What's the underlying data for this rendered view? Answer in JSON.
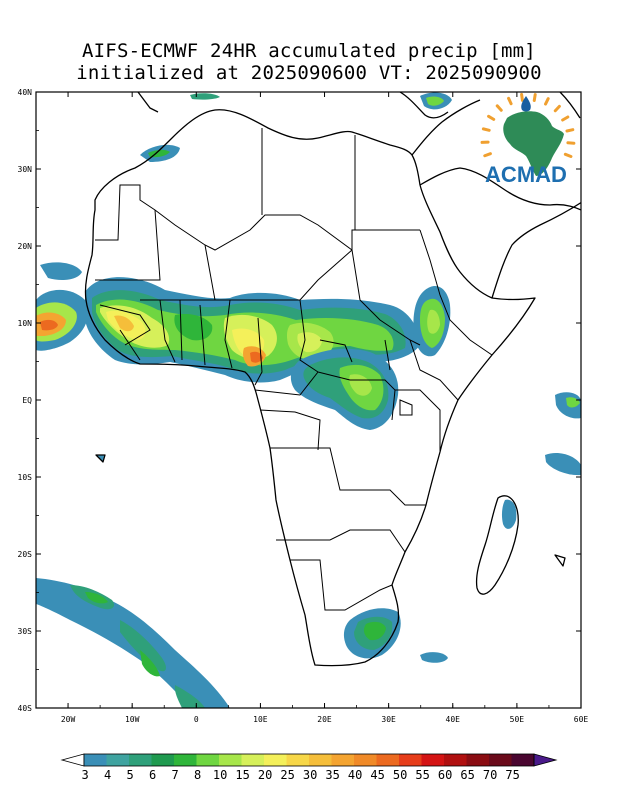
{
  "title_line1": "AIFS-ECMWF 24HR accumulated precip [mm]",
  "title_line2": "initialized at 2025090600 VT: 2025090900",
  "logo": {
    "text": "ACMAD",
    "icon": "africa-sun-logo-icon",
    "colors": {
      "africa": "#2e8b57",
      "rays": "#f0a030",
      "drop": "#1a5fa0",
      "text": "#1e6fb0"
    }
  },
  "map": {
    "lon_range": [
      -25,
      60
    ],
    "lat_range": [
      -40,
      40
    ],
    "lat_labels": [
      {
        "lat": 40,
        "label": "40N"
      },
      {
        "lat": 30,
        "label": "30N"
      },
      {
        "lat": 20,
        "label": "20N"
      },
      {
        "lat": 10,
        "label": "10N"
      },
      {
        "lat": 0,
        "label": "EQ"
      },
      {
        "lat": -10,
        "label": "10S"
      },
      {
        "lat": -20,
        "label": "20S"
      },
      {
        "lat": -30,
        "label": "30S"
      },
      {
        "lat": -40,
        "label": "40S"
      }
    ],
    "lon_labels": [
      {
        "lon": -20,
        "label": "20W"
      },
      {
        "lon": -10,
        "label": "10W"
      },
      {
        "lon": 0,
        "label": "0"
      },
      {
        "lon": 10,
        "label": "10E"
      },
      {
        "lon": 20,
        "label": "20E"
      },
      {
        "lon": 30,
        "label": "30E"
      },
      {
        "lon": 40,
        "label": "40E"
      },
      {
        "lon": 50,
        "label": "50E"
      },
      {
        "lon": 60,
        "label": "60E"
      }
    ]
  },
  "colorbar": {
    "labels": [
      "3",
      "4",
      "5",
      "6",
      "7",
      "8",
      "10",
      "15",
      "20",
      "25",
      "30",
      "35",
      "40",
      "45",
      "50",
      "55",
      "60",
      "65",
      "70",
      "75"
    ],
    "colors": [
      "#3a8fb7",
      "#3fa3a0",
      "#2fa07a",
      "#1f9a4f",
      "#2fb53a",
      "#6fd641",
      "#a7e64a",
      "#d6f05a",
      "#f4f05a",
      "#f7d748",
      "#f5be3a",
      "#f4a431",
      "#f08a28",
      "#ec6a20",
      "#e63d1a",
      "#d41414",
      "#b01010",
      "#8a0c12",
      "#6a0a1a",
      "#4a0630"
    ],
    "under_color": "#ffffff",
    "over_color": "#4a1a8a"
  },
  "precip_areas": [
    {
      "id": "sahel-west",
      "lon": -16,
      "lat": 10.5,
      "max_mm": 30
    },
    {
      "id": "atlantic-itcz",
      "lon": -23,
      "lat": 9.5,
      "max_mm": 45
    },
    {
      "id": "nigeria-cameroon",
      "lon": 9,
      "lat": 5.5,
      "max_mm": 50
    },
    {
      "id": "chad-car",
      "lon": 18,
      "lat": 8,
      "max_mm": 20
    },
    {
      "id": "congo-uganda",
      "lon": 25,
      "lat": 3,
      "max_mm": 10
    },
    {
      "id": "ethiopia",
      "lon": 37,
      "lat": 10,
      "max_mm": 10
    },
    {
      "id": "south-atlantic-front",
      "lon": -10,
      "lat": -30,
      "max_mm": 8
    },
    {
      "id": "kzn-lesotho",
      "lon": 29,
      "lat": -29,
      "max_mm": 8
    },
    {
      "id": "madagascar-east",
      "lon": 49,
      "lat": -16,
      "max_mm": 5
    }
  ]
}
